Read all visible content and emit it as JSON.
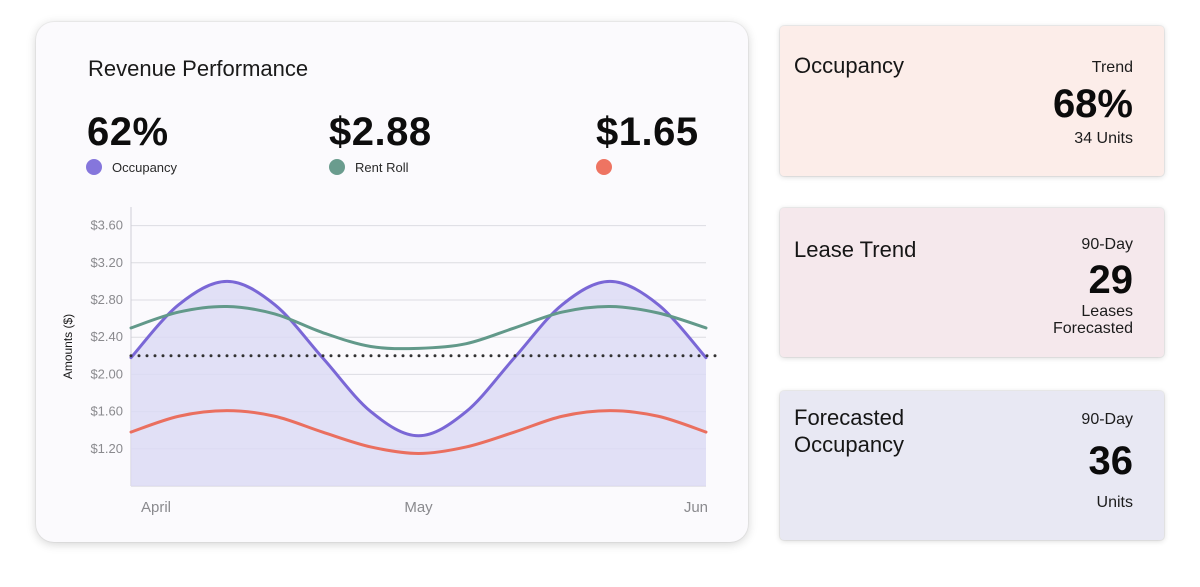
{
  "revenue": {
    "title": "Revenue Performance",
    "kpis": [
      {
        "value": "62%",
        "label": "Occupancy",
        "color": "#8576dc"
      },
      {
        "value": "$2.88",
        "label": "Rent Roll",
        "color": "#6a9c8e"
      },
      {
        "value": "$1.65",
        "label": "",
        "color": "#ee7462"
      }
    ]
  },
  "chart_data": {
    "type": "line",
    "ylabel": "Amounts ($)",
    "xlabel": "",
    "yticks": [
      "$3.60",
      "$3.20",
      "$2.80",
      "$2.40",
      "$2.00",
      "$1.60",
      "$1.20"
    ],
    "ylim": [
      0.8,
      3.8
    ],
    "xticks": [
      "April",
      "May",
      "Jun"
    ],
    "grid": true,
    "reference_line": 2.2,
    "series": [
      {
        "name": "Occupancy",
        "color": "#7a67d6",
        "fill": "#dcdaf4",
        "x": [
          0,
          0.083,
          0.167,
          0.25,
          0.333,
          0.417,
          0.5,
          0.583,
          0.667,
          0.75,
          0.833,
          0.917,
          1.0
        ],
        "y": [
          2.18,
          2.75,
          3.0,
          2.75,
          2.18,
          1.6,
          1.34,
          1.6,
          2.18,
          2.75,
          3.0,
          2.75,
          2.18
        ]
      },
      {
        "name": "Rent Roll",
        "color": "#62998a",
        "x": [
          0,
          0.083,
          0.167,
          0.25,
          0.333,
          0.417,
          0.5,
          0.583,
          0.667,
          0.75,
          0.833,
          0.917,
          1.0
        ],
        "y": [
          2.5,
          2.67,
          2.73,
          2.65,
          2.45,
          2.3,
          2.28,
          2.33,
          2.5,
          2.67,
          2.73,
          2.66,
          2.5
        ]
      },
      {
        "color": "#ea6f5f",
        "x": [
          0,
          0.083,
          0.167,
          0.25,
          0.333,
          0.417,
          0.5,
          0.583,
          0.667,
          0.75,
          0.833,
          0.917,
          1.0
        ],
        "y": [
          1.38,
          1.55,
          1.61,
          1.55,
          1.38,
          1.22,
          1.15,
          1.22,
          1.38,
          1.55,
          1.61,
          1.55,
          1.38
        ]
      }
    ]
  },
  "cards": [
    {
      "title": "Occupancy",
      "label": "Trend",
      "value": "68%",
      "sub1": "34 Units",
      "sub2": "",
      "bg": "#fcede9"
    },
    {
      "title": "Lease Trend",
      "label": "90-Day",
      "value": "29",
      "sub1": "Leases",
      "sub2": "Forecasted",
      "bg": "#f5e8ec"
    },
    {
      "title": "Forecasted\nOccupancy",
      "title_line1": "Forecasted",
      "title_line2": "Occupancy",
      "label": "90-Day",
      "value": "36",
      "sub1": "Units",
      "sub2": "",
      "bg": "#e8e8f3"
    }
  ]
}
